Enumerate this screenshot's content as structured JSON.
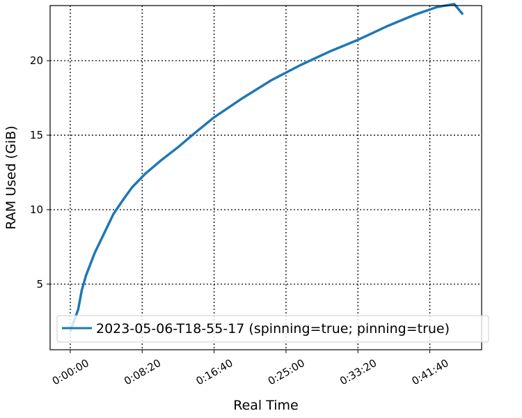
{
  "chart_data": {
    "type": "line",
    "xlabel": "Real Time",
    "ylabel": "RAM Used (GiB)",
    "x_ticks": [
      "0:00:00",
      "0:08:20",
      "0:16:40",
      "0:25:00",
      "0:33:20",
      "0:41:40"
    ],
    "x_tick_values_seconds": [
      0,
      500,
      1000,
      1500,
      2000,
      2500
    ],
    "y_ticks": [
      "5",
      "10",
      "15",
      "20"
    ],
    "y_tick_values": [
      5,
      10,
      15,
      20
    ],
    "xlim_seconds": [
      -140,
      2860
    ],
    "ylim": [
      0.6,
      23.7
    ],
    "grid": true,
    "grid_style": "dotted",
    "legend_position": "lower-right",
    "series": [
      {
        "name": "2023-05-06-T18-55-17 (spinning=true; pinning=true)",
        "color": "#1f77b4",
        "x_seconds": [
          0,
          25,
          55,
          80,
          110,
          170,
          240,
          300,
          370,
          430,
          520,
          630,
          750,
          860,
          1000,
          1200,
          1400,
          1600,
          1800,
          2000,
          2200,
          2400,
          2550,
          2670,
          2730
        ],
        "values": [
          1.8,
          2.5,
          3.3,
          4.6,
          5.6,
          7.1,
          8.5,
          9.7,
          10.7,
          11.5,
          12.4,
          13.3,
          14.2,
          15.1,
          16.2,
          17.5,
          18.7,
          19.7,
          20.6,
          21.4,
          22.3,
          23.1,
          23.6,
          23.8,
          23.1
        ]
      }
    ]
  }
}
